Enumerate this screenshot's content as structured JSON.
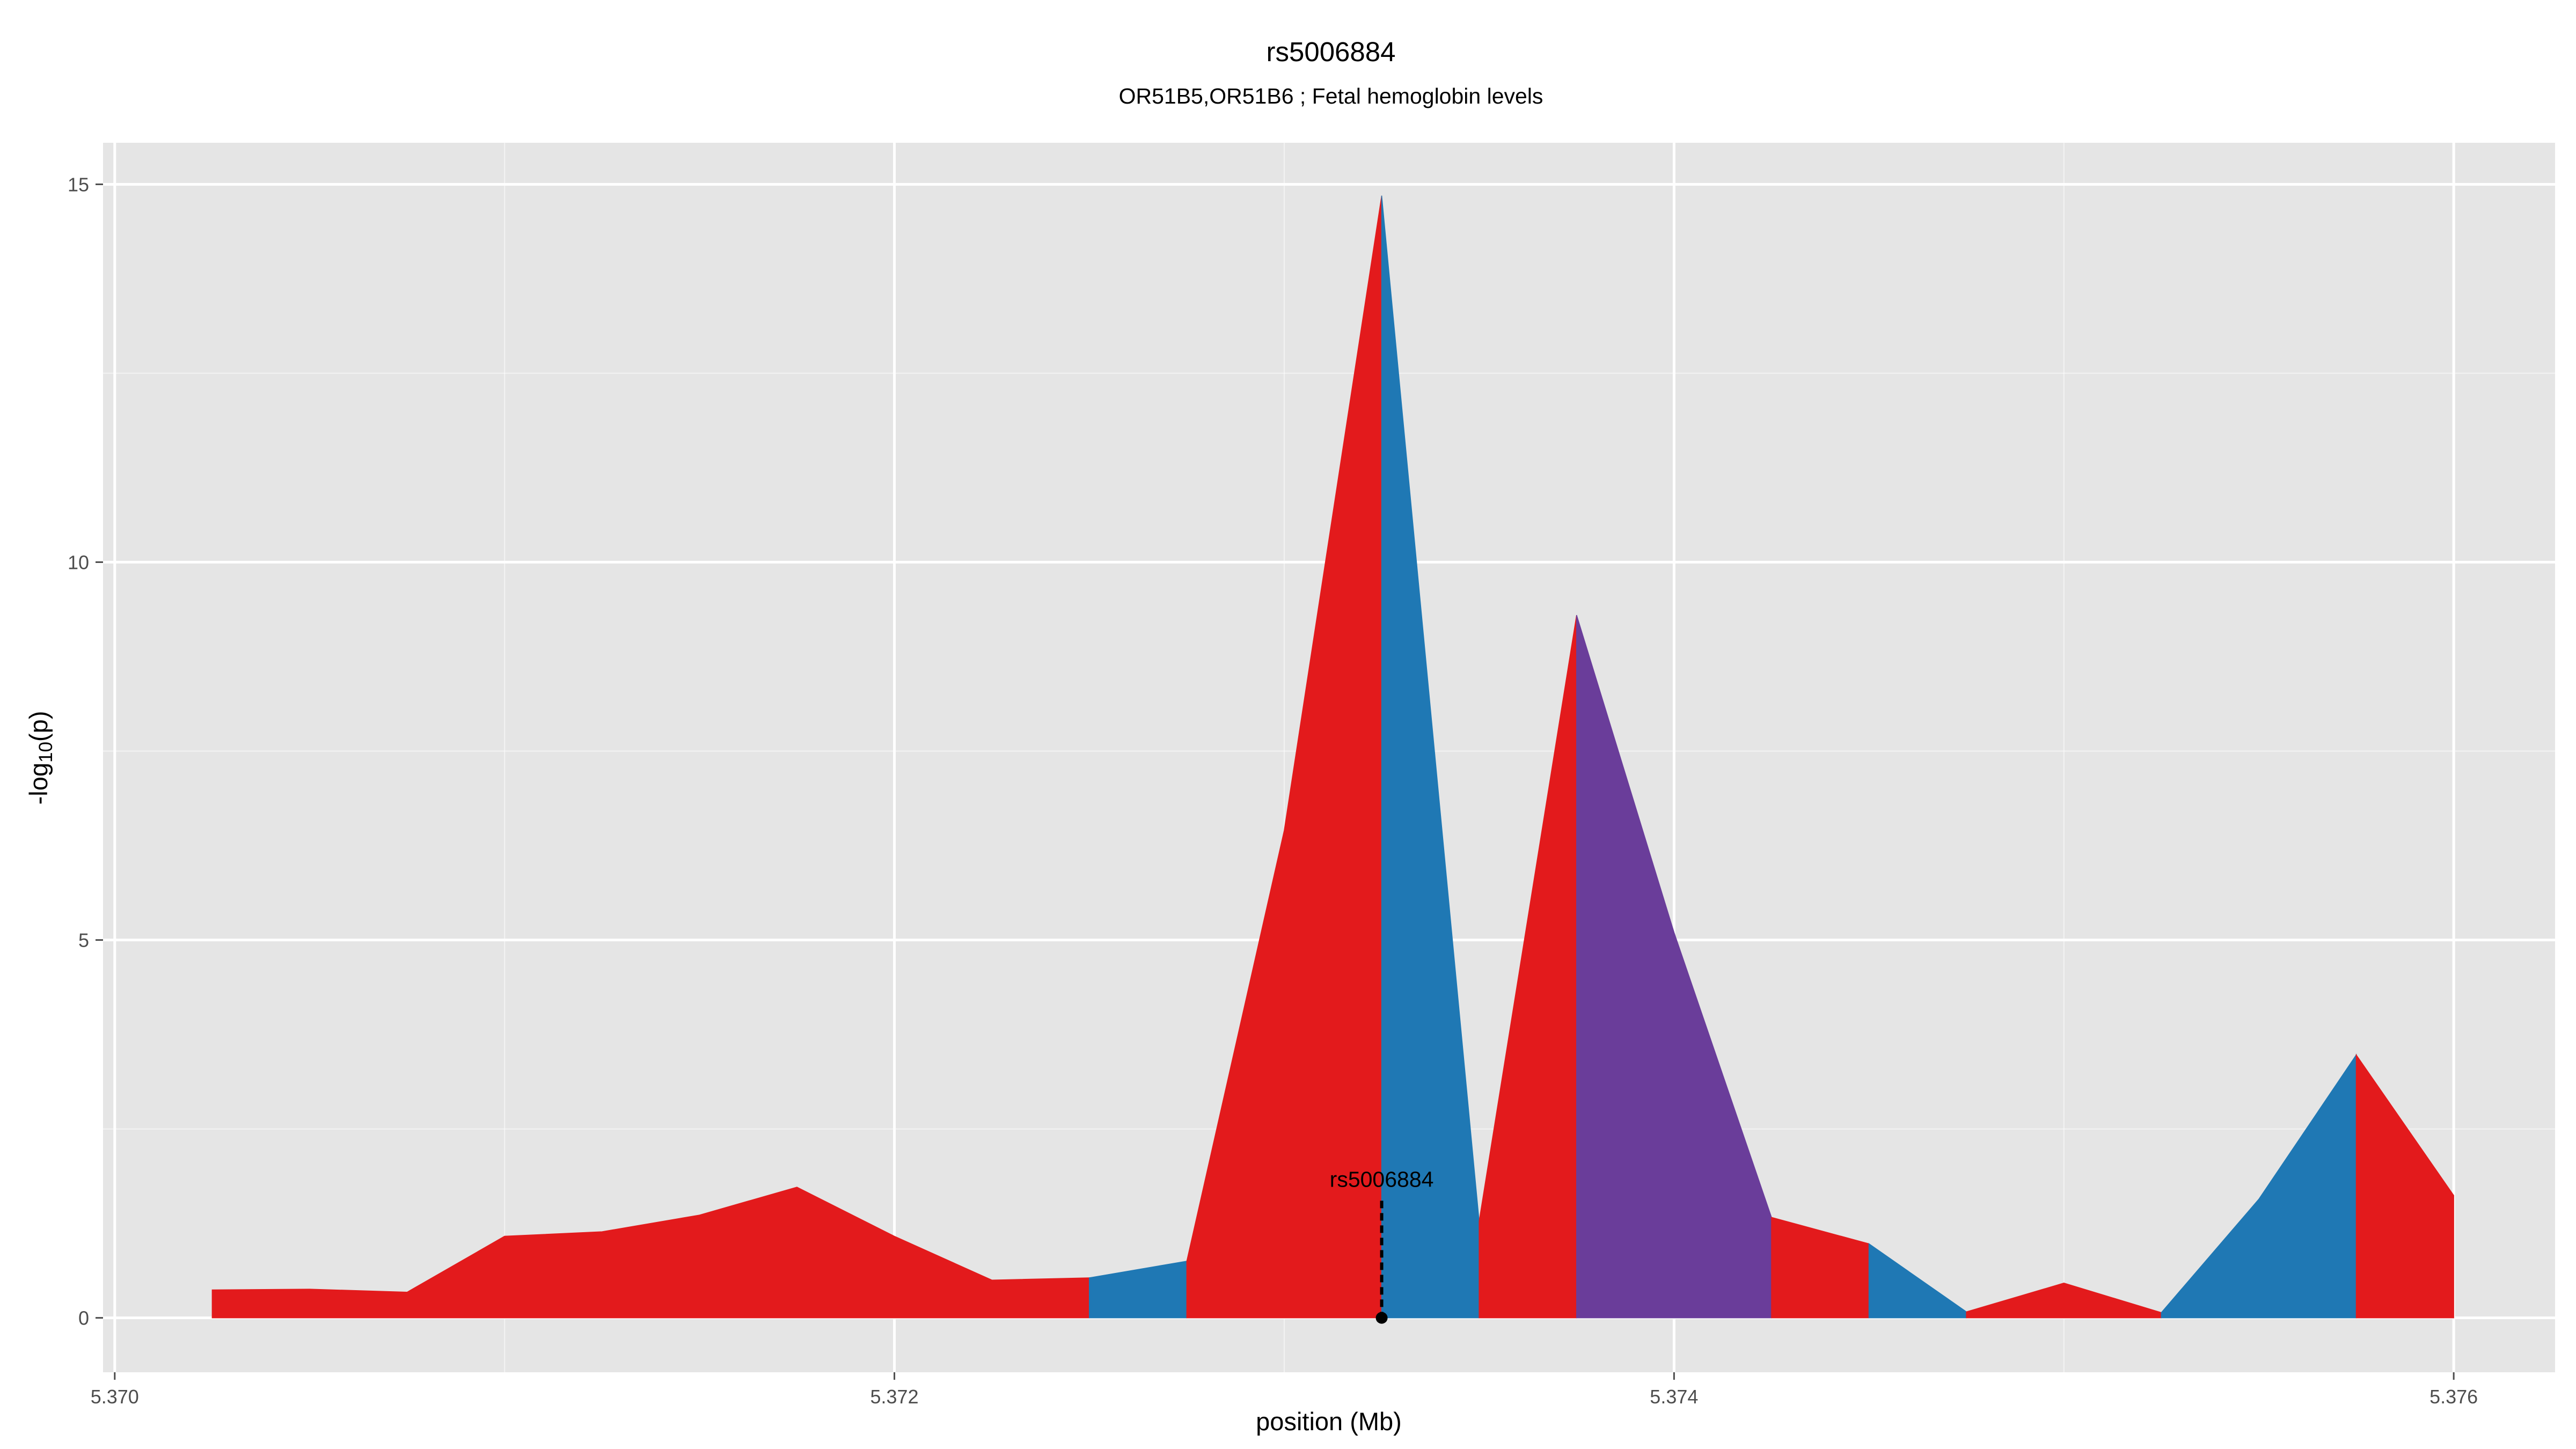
{
  "chart_data": {
    "type": "area",
    "title": "rs5006884",
    "subtitle": "OR51B5,OR51B6 ; Fetal hemoglobin levels",
    "xlabel": "position (Mb)",
    "ylabel_main": "-log",
    "ylabel_sub": "10",
    "ylabel_tail": "(p)",
    "xlim": [
      5.36997,
      5.37626
    ],
    "ylim": [
      -0.72,
      15.55
    ],
    "x_ticks": [
      5.37,
      5.372,
      5.374,
      5.376
    ],
    "x_tick_labels": [
      "5.370",
      "5.372",
      "5.374",
      "5.376"
    ],
    "y_ticks": [
      0,
      5,
      10,
      15
    ],
    "y_tick_labels": [
      "0",
      "5",
      "10",
      "15"
    ],
    "grid": true,
    "colors": {
      "panel": "#e5e5e5",
      "grid": "#ffffff",
      "red": "#e31a1c",
      "blue": "#1f78b4",
      "purple": "#6a3d9a"
    },
    "segments": [
      {
        "color": "red",
        "points": [
          [
            5.37025,
            0.37
          ],
          [
            5.3705,
            0.38
          ],
          [
            5.37075,
            0.34
          ],
          [
            5.371,
            1.08
          ],
          [
            5.37125,
            1.14
          ],
          [
            5.3715,
            1.36
          ],
          [
            5.37175,
            1.73
          ],
          [
            5.372,
            1.08
          ],
          [
            5.37225,
            0.5
          ],
          [
            5.3725,
            0.53
          ]
        ]
      },
      {
        "color": "blue",
        "points": [
          [
            5.3725,
            0.53
          ],
          [
            5.37275,
            0.75
          ]
        ]
      },
      {
        "color": "red",
        "points": [
          [
            5.37275,
            0.75
          ],
          [
            5.373,
            6.45
          ],
          [
            5.37325,
            14.85
          ]
        ]
      },
      {
        "color": "blue",
        "points": [
          [
            5.37325,
            14.85
          ],
          [
            5.3735,
            1.28
          ]
        ]
      },
      {
        "color": "red",
        "points": [
          [
            5.3735,
            1.28
          ],
          [
            5.37375,
            9.3
          ]
        ]
      },
      {
        "color": "purple",
        "points": [
          [
            5.37375,
            9.3
          ],
          [
            5.374,
            5.1
          ],
          [
            5.37425,
            1.33
          ]
        ]
      },
      {
        "color": "red",
        "points": [
          [
            5.37425,
            1.33
          ],
          [
            5.3745,
            0.98
          ]
        ]
      },
      {
        "color": "blue",
        "points": [
          [
            5.3745,
            0.98
          ],
          [
            5.37475,
            0.08
          ]
        ]
      },
      {
        "color": "red",
        "points": [
          [
            5.37475,
            0.08
          ],
          [
            5.375,
            0.46
          ],
          [
            5.37525,
            0.07
          ]
        ]
      },
      {
        "color": "blue",
        "points": [
          [
            5.37525,
            0.07
          ],
          [
            5.3755,
            1.57
          ],
          [
            5.37575,
            3.48
          ]
        ]
      },
      {
        "color": "red",
        "points": [
          [
            5.37575,
            3.48
          ],
          [
            5.376,
            1.62
          ]
        ]
      }
    ],
    "annotation": {
      "label": "rs5006884",
      "x": 5.37325,
      "y": 0,
      "line_top": 1.55
    }
  }
}
